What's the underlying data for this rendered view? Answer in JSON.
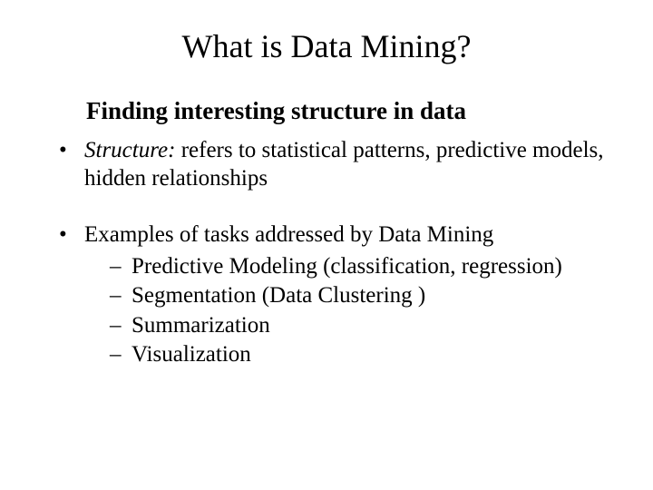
{
  "title": "What is Data Mining?",
  "subtitle": "Finding interesting structure in data",
  "bullets": [
    {
      "italic_lead": "Structure:",
      "text": " refers to statistical patterns, predictive models, hidden relationships"
    },
    {
      "text": "Examples of tasks addressed by Data Mining",
      "subitems": [
        "Predictive Modeling (classification, regression)",
        "Segmentation (Data Clustering )",
        "Summarization",
        "Visualization"
      ]
    }
  ],
  "colors": {
    "background": "#ffffff",
    "text": "#000000"
  },
  "typography": {
    "font_family": "Times New Roman",
    "title_fontsize": 36,
    "subtitle_fontsize": 27,
    "body_fontsize": 25
  }
}
